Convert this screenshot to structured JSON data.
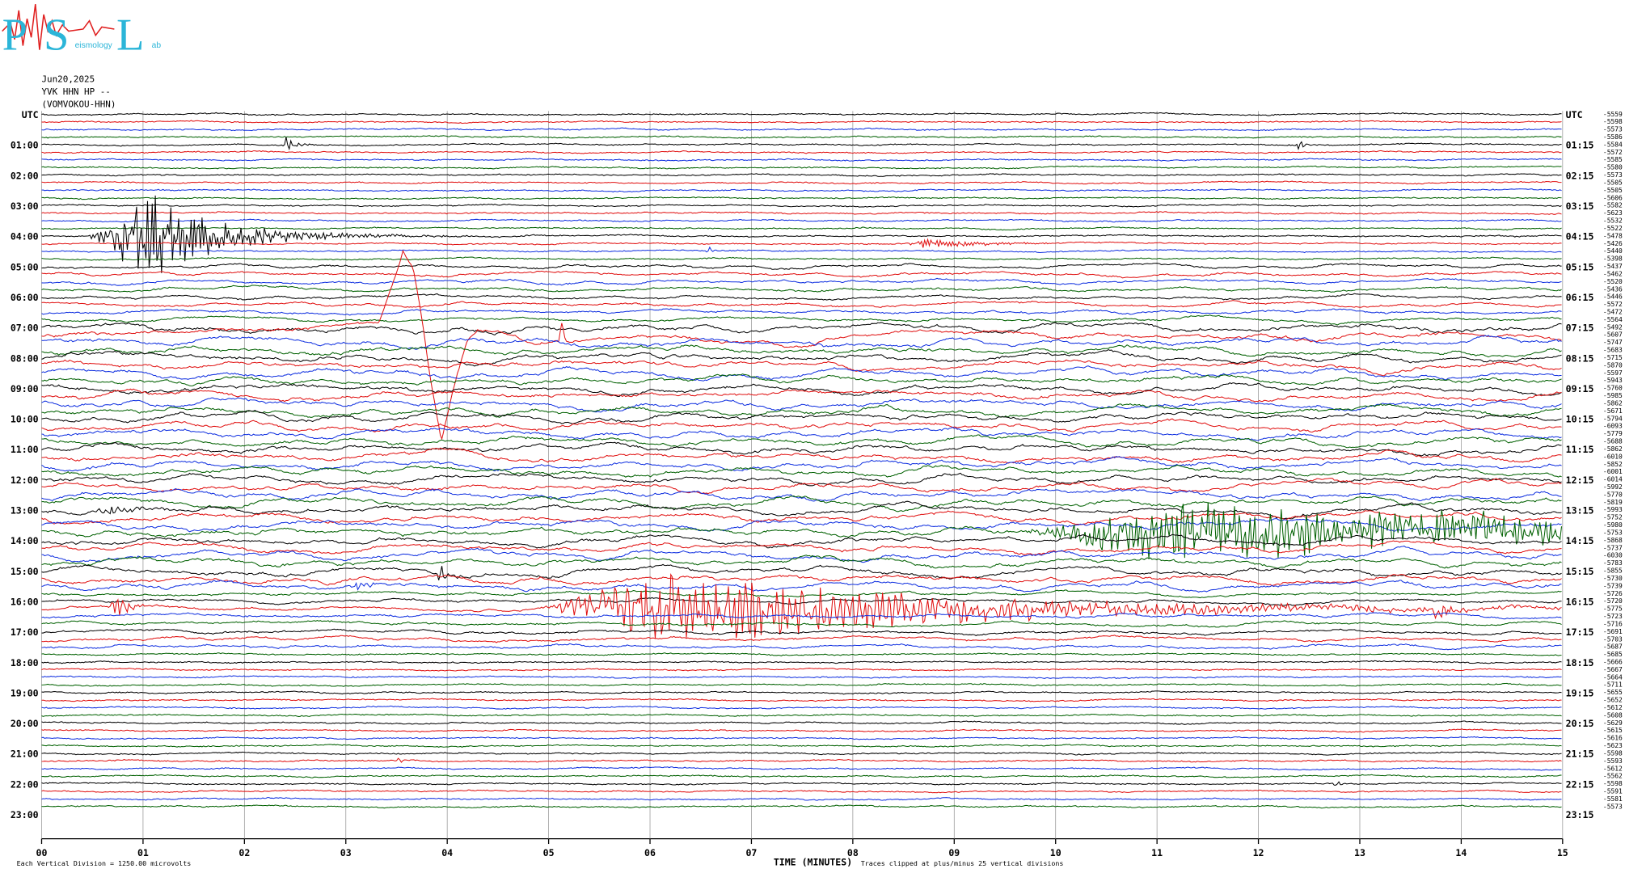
{
  "logo": {
    "letters": [
      "P",
      "S",
      "L"
    ],
    "subtitle": [
      "eismology",
      "ab"
    ]
  },
  "header": {
    "date": "Jun20,2025",
    "channel": "YVK HHN HP --",
    "station": "(VOMVOKOU-HHN)"
  },
  "left_labels": [
    "UTC",
    "01:00",
    "02:00",
    "03:00",
    "04:00",
    "05:00",
    "06:00",
    "07:00",
    "08:00",
    "09:00",
    "10:00",
    "11:00",
    "12:00",
    "13:00",
    "14:00",
    "15:00",
    "16:00",
    "17:00",
    "18:00",
    "19:00",
    "20:00",
    "21:00",
    "22:00",
    "23:00"
  ],
  "right_labels": [
    "UTC",
    "01:15",
    "02:15",
    "03:15",
    "04:15",
    "05:15",
    "06:15",
    "07:15",
    "08:15",
    "09:15",
    "10:15",
    "11:15",
    "12:15",
    "13:15",
    "14:15",
    "15:15",
    "16:15",
    "17:15",
    "18:15",
    "19:15",
    "20:15",
    "21:15",
    "22:15",
    "23:15"
  ],
  "trace_offsets": [
    -5559,
    -5598,
    -5573,
    -5586,
    -5584,
    -5572,
    -5585,
    -5580,
    -5573,
    -5505,
    -5505,
    -5606,
    -5582,
    -5623,
    -5532,
    -5522,
    -5478,
    -5426,
    -5440,
    -5398,
    -5437,
    -5462,
    -5520,
    -5436,
    -5446,
    -5572,
    -5472,
    -5564,
    -5492,
    -5607,
    -5747,
    -5683,
    -5715,
    -5870,
    -5597,
    -5943,
    -5760,
    -5985,
    -5862,
    -5671,
    -5794,
    -6093,
    -5779,
    -5688,
    -5862,
    -6010,
    -5852,
    -6001,
    -6014,
    -5992,
    -5770,
    -5819,
    -5993,
    -5752,
    -5980,
    -5753,
    -5868,
    -5737,
    -6030,
    -5783,
    -5855,
    -5730,
    -5739,
    -5726,
    -5720,
    -5775,
    -5723,
    -5716,
    -5691,
    -5703,
    -5687,
    -5685,
    -5666,
    -5667,
    -5664,
    -5711,
    -5655,
    -5652,
    -5612,
    -5608,
    -5629,
    -5615,
    -5616,
    -5623,
    -5598,
    -5593,
    -5612,
    -5562,
    -5598,
    -5591,
    -5581,
    -5573
  ],
  "x_ticks": [
    "00",
    "01",
    "02",
    "03",
    "04",
    "05",
    "06",
    "07",
    "08",
    "09",
    "10",
    "11",
    "12",
    "13",
    "14",
    "15"
  ],
  "x_axis_title": "TIME (MINUTES)",
  "footer": {
    "scale_note": "Each Vertical Division = 1250.00 microvolts",
    "clip_note": "Traces clipped at plus/minus 25 vertical divisions"
  }
}
